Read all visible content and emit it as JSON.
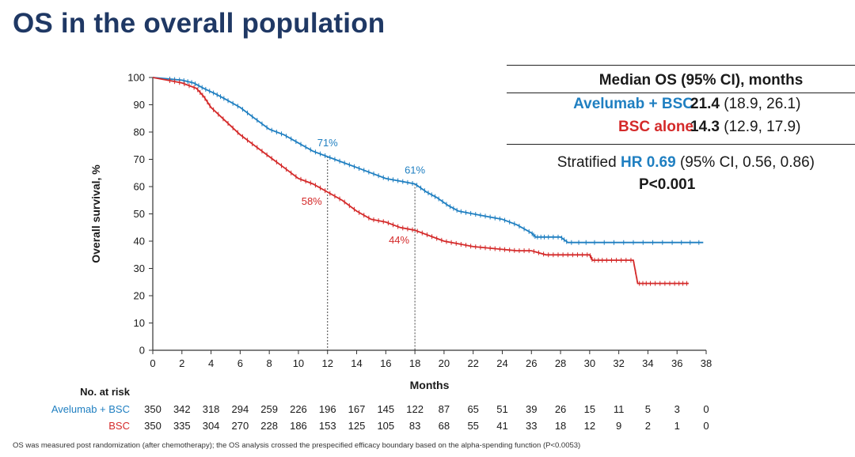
{
  "title": "OS in the overall population",
  "colors": {
    "avelumab": "#1f7fc1",
    "bsc": "#d42a2a",
    "title": "#1f3864"
  },
  "stats_box": {
    "header": "Median OS (95% CI), months",
    "rows": [
      {
        "name": "Avelumab + BSC",
        "median": "21.4",
        "ci": "(18.9, 26.1)"
      },
      {
        "name": "BSC alone",
        "median": "14.3",
        "ci": "(12.9, 17.9)"
      }
    ],
    "hr_prefix": "Stratified",
    "hr_value": "HR 0.69",
    "hr_ci": "(95% CI, 0.56, 0.86)",
    "p_value": "P<0.001"
  },
  "chart_data": {
    "type": "line",
    "subtype": "kaplan-meier",
    "xlabel": "Months",
    "ylabel": "Overall survival, %",
    "xlim": [
      0,
      38
    ],
    "ylim": [
      0,
      100
    ],
    "xticks": [
      0,
      2,
      4,
      6,
      8,
      10,
      12,
      14,
      16,
      18,
      20,
      22,
      24,
      26,
      28,
      30,
      32,
      34,
      36,
      38
    ],
    "yticks": [
      0,
      10,
      20,
      30,
      40,
      50,
      60,
      70,
      80,
      90,
      100
    ],
    "reference_lines_x": [
      12,
      18
    ],
    "series": [
      {
        "name": "Avelumab + BSC",
        "color": "#1f7fc1",
        "x": [
          0,
          1,
          2,
          2.8,
          3.5,
          4.3,
          5,
          6,
          7,
          8,
          9,
          10,
          11,
          12,
          13,
          14,
          15,
          16,
          17,
          18,
          18.8,
          19.5,
          20.3,
          21,
          22,
          23,
          24,
          25,
          26,
          26.3,
          27,
          28,
          28.5,
          30,
          32,
          34,
          36,
          37.8
        ],
        "y": [
          100,
          99.5,
          99,
          98,
          96,
          94,
          92,
          89,
          85,
          81,
          79,
          76,
          73,
          71,
          69,
          67,
          65,
          63,
          62,
          61,
          58,
          56,
          53,
          51,
          50,
          49,
          48,
          46,
          43,
          41.5,
          41.5,
          41.5,
          39.5,
          39.5,
          39.5,
          39.5,
          39.5,
          39.5
        ]
      },
      {
        "name": "BSC alone",
        "color": "#d42a2a",
        "x": [
          0,
          1,
          2,
          3,
          3.5,
          4,
          5,
          6,
          7,
          8,
          9,
          10,
          11,
          12,
          13,
          14,
          15,
          16,
          17,
          18,
          19,
          20,
          21,
          22,
          23,
          24,
          25,
          26,
          27,
          28,
          29,
          30,
          30.2,
          31,
          32,
          33,
          33.3,
          34,
          35,
          36,
          36.8
        ],
        "y": [
          100,
          99,
          98,
          96,
          93,
          89,
          84,
          79,
          75,
          71,
          67,
          63,
          61,
          58,
          55,
          51,
          48,
          47,
          45,
          44,
          42,
          40,
          39,
          38,
          37.5,
          37,
          36.5,
          36.5,
          35,
          35,
          35,
          35,
          33,
          33,
          33,
          33,
          24.5,
          24.5,
          24.5,
          24.5,
          24.5
        ]
      }
    ],
    "annotations": [
      {
        "text": "71%",
        "series": "Avelumab + BSC",
        "x": 12,
        "y": 71
      },
      {
        "text": "61%",
        "series": "Avelumab + BSC",
        "x": 18,
        "y": 61
      },
      {
        "text": "58%",
        "series": "BSC alone",
        "x": 12,
        "y": 58
      },
      {
        "text": "44%",
        "series": "BSC alone",
        "x": 18,
        "y": 44
      }
    ],
    "risk_table": {
      "title": "No. at risk",
      "times": [
        0,
        2,
        4,
        6,
        8,
        10,
        12,
        14,
        16,
        18,
        20,
        22,
        24,
        26,
        28,
        30,
        32,
        34,
        36,
        38
      ],
      "rows": [
        {
          "name": "Avelumab + BSC",
          "values": [
            350,
            342,
            318,
            294,
            259,
            226,
            196,
            167,
            145,
            122,
            87,
            65,
            51,
            39,
            26,
            15,
            11,
            5,
            3,
            0
          ]
        },
        {
          "name": "BSC",
          "values": [
            350,
            335,
            304,
            270,
            228,
            186,
            153,
            125,
            105,
            83,
            68,
            55,
            41,
            33,
            18,
            12,
            9,
            2,
            1,
            0
          ]
        }
      ]
    }
  },
  "footnote": "OS was measured post randomization (after chemotherapy); the OS analysis crossed the prespecified efficacy boundary based on the alpha-spending function (P<0.0053)"
}
